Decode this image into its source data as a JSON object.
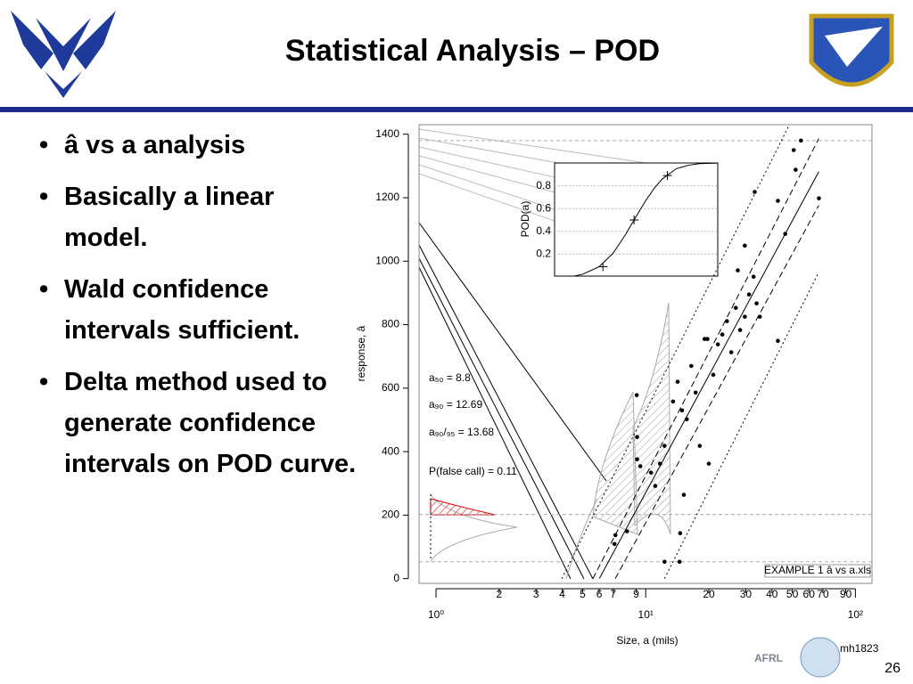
{
  "header": {
    "title": "Statistical Analysis – POD"
  },
  "bullets": [
    "â vs a analysis",
    "Basically a linear model.",
    "Wald confidence intervals sufficient.",
    "Delta method used to generate confidence intervals on POD curve."
  ],
  "chart_data": {
    "type": "scatter",
    "xlabel": "Size, a (mils)",
    "ylabel": "response, â",
    "xscale": "log",
    "xlim": [
      0.83,
      120
    ],
    "ylim": [
      -15,
      1430
    ],
    "xticks": [
      {
        "value": 1,
        "label": "10⁰"
      },
      2,
      3,
      4,
      5,
      6,
      7,
      9,
      {
        "value": 10,
        "label": "10¹"
      },
      20,
      30,
      40,
      50,
      60,
      70,
      90,
      {
        "value": 100,
        "label": "10²"
      }
    ],
    "yticks": [
      0,
      200,
      400,
      600,
      800,
      1000,
      1200,
      1400
    ],
    "color": "#000000",
    "x": [
      9.06,
      9.1,
      9.1,
      9.43,
      7.17,
      7.1,
      8.14,
      10.6,
      11.1,
      11.7,
      12.3,
      13.5,
      14.2,
      14.9,
      15.7,
      16.5,
      17.3,
      18.1,
      19.1,
      20.0,
      21.0,
      22.1,
      23.2,
      24.4,
      25.6,
      26.9,
      28.2,
      29.7,
      31.1,
      32.7,
      33.8,
      35.0,
      27.5,
      29.7,
      33.1,
      42.7,
      46.3,
      42.7,
      50.8,
      55.0,
      51.9,
      67.0,
      14.6,
      12.3,
      14.5,
      15.2,
      19.7
    ],
    "values": [
      578,
      446,
      376,
      354,
      137,
      109,
      149,
      334,
      292,
      362,
      418,
      558,
      620,
      530,
      502,
      670,
      586,
      418,
      755,
      362,
      642,
      738,
      769,
      811,
      713,
      853,
      783,
      825,
      895,
      951,
      867,
      825,
      971,
      1049,
      1218,
      1190,
      1086,
      749,
      1350,
      1380,
      1288,
      1198,
      143,
      53,
      53,
      264,
      755
    ],
    "lines": [
      {
        "style": "solid",
        "x": [
          6.01,
          66.9
        ],
        "values": [
          0,
          1282
        ]
      },
      {
        "style": "dashed",
        "x": [
          7.16,
          66.9
        ],
        "values": [
          0,
          1176
        ]
      },
      {
        "style": "dashed",
        "x": [
          5.6,
          66.9
        ],
        "values": [
          0,
          1386
        ]
      },
      {
        "style": "dotted",
        "x": [
          3.98,
          48.3
        ],
        "values": [
          0,
          1428
        ]
      },
      {
        "style": "dotted",
        "x": [
          12.3,
          66.9
        ],
        "values": [
          0,
          965
        ]
      }
    ],
    "hlines": [
      1380,
      202,
      53
    ],
    "annotations": [
      "a₅₀ = 8.8",
      "a₉₀ = 12.69",
      "a₉₀/₉₅ = 13.68",
      "P(false call) = 0.11"
    ],
    "source": "EXAMPLE 1 â vs a.xls",
    "author": "mh1823",
    "inset": {
      "ylabel": "POD(a)",
      "ylim": [
        0,
        1
      ],
      "yticks": [
        0.2,
        0.4,
        0.6,
        0.8
      ],
      "x": [
        4.6,
        5,
        6,
        7,
        8,
        9,
        10,
        11,
        12,
        14,
        16,
        18,
        22
      ],
      "values": [
        0.01,
        0.024,
        0.09,
        0.21,
        0.37,
        0.53,
        0.67,
        0.78,
        0.86,
        0.95,
        0.98,
        0.994,
        0.999
      ],
      "marker_x": [
        6.25,
        8.8,
        12.69
      ],
      "marker_values": [
        0.09,
        0.5,
        0.89
      ]
    }
  },
  "footer": {
    "logo_text": "AFRL",
    "page_number": "26"
  }
}
